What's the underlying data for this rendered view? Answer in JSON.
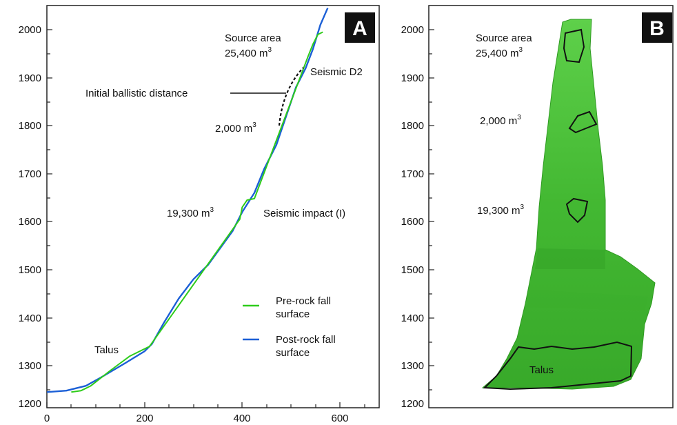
{
  "panel_a": {
    "letter": "A",
    "y_ticks": [
      "2000",
      "1900",
      "1800",
      "1700",
      "1600",
      "1500",
      "1400",
      "1300",
      "1200"
    ],
    "x_ticks": [
      "0",
      "200",
      "400",
      "600"
    ],
    "annotations": {
      "source_area": "Source area",
      "source_volume": "25,400 m",
      "source_sup": "3",
      "seismic_d2": "Seismic D2",
      "ballistic": "Initial ballistic distance",
      "vol_2000": "2,000 m",
      "vol_2000_sup": "3",
      "vol_19300": "19,300 m",
      "vol_19300_sup": "3",
      "seismic_impact": "Seismic impact (I)",
      "talus": "Talus"
    },
    "legend": {
      "pre_line1": "Pre-rock fall",
      "pre_line2": "surface",
      "post_line1": "Post-rock fall",
      "post_line2": "surface"
    },
    "colors": {
      "pre": "#2ecc1a",
      "post": "#1b5fd6",
      "ballistic": "#111111"
    }
  },
  "panel_b": {
    "letter": "B",
    "y_ticks": [
      "2000",
      "1900",
      "1800",
      "1700",
      "1600",
      "1500",
      "1400",
      "1300",
      "1200"
    ],
    "annotations": {
      "source_area": "Source area",
      "source_volume": "25,400 m",
      "source_sup": "3",
      "vol_2000": "2,000 m",
      "vol_2000_sup": "3",
      "vol_19300": "19,300 m",
      "vol_19300_sup": "3",
      "talus": "Talus"
    },
    "colors": {
      "terrain": "#4fc73a",
      "terrain_dark": "#2f9a22"
    }
  },
  "chart_data": {
    "type": "line",
    "xlim": [
      0,
      680
    ],
    "ylim": [
      1200,
      2050
    ],
    "series": [
      {
        "name": "Post-rock fall surface",
        "x": [
          0,
          40,
          80,
          110,
          160,
          200,
          215,
          240,
          270,
          300,
          330,
          355,
          380,
          400,
          425,
          445,
          470,
          490,
          510,
          530,
          545,
          560,
          575
        ],
        "y": [
          1245,
          1248,
          1258,
          1275,
          1305,
          1330,
          1345,
          1390,
          1440,
          1480,
          1510,
          1545,
          1580,
          1620,
          1660,
          1710,
          1760,
          1820,
          1880,
          1920,
          1960,
          2010,
          2045
        ]
      },
      {
        "name": "Pre-rock fall surface",
        "x": [
          50,
          70,
          90,
          130,
          170,
          210,
          395,
          400,
          410,
          425,
          535,
          545,
          555,
          565
        ],
        "y": [
          1245,
          1248,
          1258,
          1290,
          1320,
          1340,
          1605,
          1630,
          1645,
          1648,
          1945,
          1970,
          1990,
          1995
        ]
      }
    ]
  }
}
